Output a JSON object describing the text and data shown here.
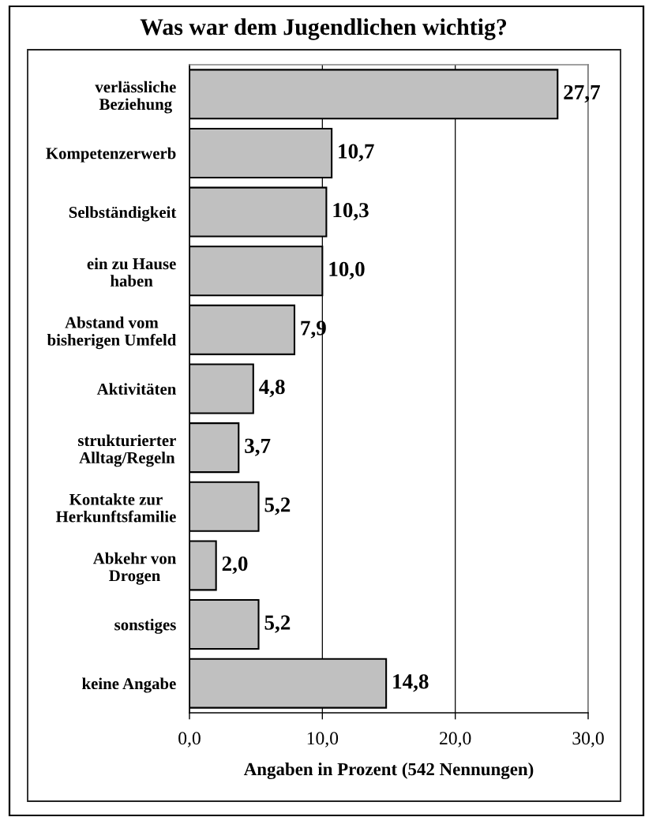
{
  "chart_data": {
    "type": "bar",
    "orientation": "horizontal",
    "title": "Was war dem Jugendlichen wichtig?",
    "xlabel": "Angaben in Prozent (542 Nennungen)",
    "categories": [
      "verlässliche\nBeziehung",
      "Kompetenzerwerb",
      "Selbständigkeit",
      "ein zu Hause\nhaben",
      "Abstand vom\nbisherigen Umfeld",
      "Aktivitäten",
      "strukturierter\nAlltag/Regeln",
      "Kontakte zur\nHerkunftsfamilie",
      "Abkehr von\nDrogen",
      "sonstiges",
      "keine Angabe"
    ],
    "values": [
      27.7,
      10.7,
      10.3,
      10.0,
      7.9,
      4.8,
      3.7,
      5.2,
      2.0,
      5.2,
      14.8
    ],
    "value_labels": [
      "27,7",
      "10,7",
      "10,3",
      "10,0",
      "7,9",
      "4,8",
      "3,7",
      "5,2",
      "2,0",
      "5,2",
      "14,8"
    ],
    "color": "#c0c0c0",
    "xlim": [
      0,
      30
    ],
    "xticks": [
      {
        "value": 0,
        "label": "0,0"
      },
      {
        "value": 10,
        "label": "10,0"
      },
      {
        "value": 20,
        "label": "20,0"
      },
      {
        "value": 30,
        "label": "30,0"
      }
    ],
    "grid": "x"
  }
}
